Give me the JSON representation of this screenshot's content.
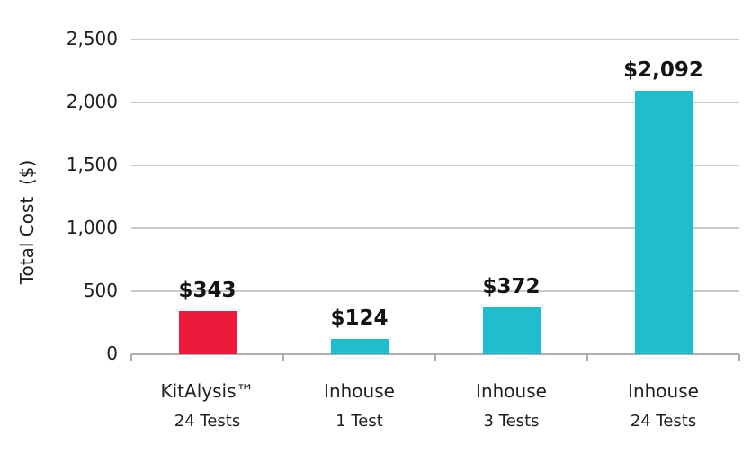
{
  "chart_data": {
    "type": "bar",
    "title": "",
    "xlabel": "",
    "ylabel": "Total Cost  ($)",
    "ylim": [
      0,
      2500
    ],
    "ytick_step": 500,
    "yticks": [
      0,
      500,
      1000,
      1500,
      2000,
      2500
    ],
    "ytick_labels": [
      "0",
      "500",
      "1,000",
      "1,500",
      "2,000",
      "2,500"
    ],
    "grid": "horizontal",
    "legend": "none",
    "categories": [
      {
        "line1": "KitAlysis™",
        "line2": "24 Tests"
      },
      {
        "line1": "Inhouse",
        "line2": "1 Test"
      },
      {
        "line1": "Inhouse",
        "line2": "3 Tests"
      },
      {
        "line1": "Inhouse",
        "line2": "24 Tests"
      }
    ],
    "values": [
      343,
      124,
      372,
      2092
    ],
    "value_labels": [
      "$343",
      "$124",
      "$372",
      "$2,092"
    ],
    "bar_colors": [
      "#ED1A3D",
      "#1FBDCD",
      "#1FBDCD",
      "#1FBDCD"
    ]
  },
  "colors": {
    "red": "#ED1A3D",
    "teal": "#1FBDCD",
    "gridline": "#C9C9C9",
    "axis": "#ADADAD",
    "text": "#1F1F1F",
    "value_text": "#141414"
  }
}
